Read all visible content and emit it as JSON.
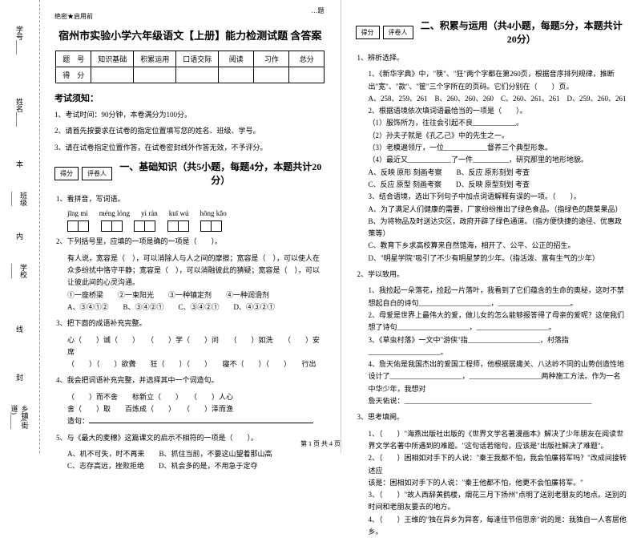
{
  "topLabel": "…题",
  "marginLabels": {
    "xuehao": "学号____",
    "xingming": "姓名____",
    "banji": "班级____",
    "xuexiao": "学校____",
    "xiangzhen": "乡镇(街道)____",
    "nei": "内",
    "ben": "本",
    "xian": "线",
    "feng": "封"
  },
  "header": {
    "secret": "绝密★启用前",
    "title": "宿州市实验小学六年级语文【上册】能力检测试题 含答案"
  },
  "scoreTable": {
    "r1": [
      "题　号",
      "知识基础",
      "积累运用",
      "口语交际",
      "阅读",
      "习作",
      "总分"
    ],
    "r2": [
      "得　分",
      "",
      "",
      "",
      "",
      "",
      ""
    ]
  },
  "notice": {
    "title": "考试须知：",
    "items": [
      "1、考试时间：90分钟，本卷满分为100分。",
      "2、请首先按要求在试卷的指定位置填写您的姓名、班级、学号。",
      "3、请在试卷指定位置作答，在试卷密封线外作答无效，不予评分。"
    ]
  },
  "scoreLabel": {
    "defen": "得分",
    "pingjuan": "评卷人"
  },
  "section1": {
    "title": "一、基础知识（共5小题，每题4分，本题共计20分）",
    "q1": "1、看拼音，写词语。",
    "pinyin": [
      "jīng  mì",
      "méng  lóng",
      "yì  rán",
      "kuī  wú",
      "hōng  kǎo"
    ],
    "q2": "2、下列括号里，应填的一项是确的一项是（　　）。",
    "q2body": "有人说，宽容是（　），可以消除人与人之间的摩擦；宽容是（　），可以使人在众多纷扰中恪守平静；宽容是（　），可以消融彼此的猜疑；宽容是（　），可以让彼此间的心灵沟通。",
    "q2opts": {
      "line1": "①一座桥梁　　②一束阳光　　③一种镇定剂　　④一种润滑剂",
      "line2": "A、③④①②　　B、③④②①　　C、③④②①　　D、④③②①"
    },
    "q3": "3、把下面的成语补充完整。",
    "q3a": "心（　　）诚（　　）　　（　　）学（　　）问　　（　　）如洗　　（　　）安席",
    "q3b": "（　　）（　　）欲聋　　狂（　　）（　　）　　寝不（　　）（　　）　　行出",
    "q4": "4、我会把词语补充完整，并选择其中一个词造句。",
    "q4a": "（　　）而不舍　　标新立（　　）　　（　　）人心",
    "q4b": "舍（　　）取　　百炼成（　　）　　（　　）泽而渔",
    "q4c": "造句：",
    "q5": "5、与《最大的麦穗》这篇课文的启示不相符的一项是（　　）。",
    "q5opts": {
      "a": "A、机不可失，时不再来　　B、抓住当前，不要这山望着那山高",
      "c": "C、志存高远，挫败拒绝　　D、机会多的是，不用急于定夺"
    }
  },
  "section2": {
    "title": "二、积累与运用（共4小题，每题5分，本题共计20分）",
    "q1": "1、辨析选择。",
    "q1_1": "1、《新华字典》中，\"筷\"、\"狂\"两个字都在第260页，根据音序排列规律，推断出\"宽\"、\"款\"、\"筐\"三个字所在的页码。它们分别在（　　）页。",
    "q1_1opts": "A、258、259、261　B、260、260、260　C、260、261、261　D、259、260、261",
    "q1_2": "2、根据语境依次填词语最恰当的一项是（　　）。",
    "q1_2a": "（1）服饰所为，往往会引起不良____________。",
    "q1_2b": "（2）孙夫子就是《孔乙己》中的先生之一。",
    "q1_2c": "（3）老模遍领厅，一位____________督养三个典型形象。",
    "q1_2d": "（4）最近又____________了一件__________，研究那里的地形地貌。",
    "q1_2opts": {
      "a": "A、反映  原形  刻画考察　　B、反应  原形刻划  考查",
      "c": "C、反应  原型  刻画考察　　D、反映  原型刻划  考查"
    },
    "q1_3": "3、结合语境，选出下列句子中加点词语解释有误的一项。（　　）。",
    "q1_3a": "A、为了满足人们健康的需要，厂家纷纷推出了绿色食品。（指绿色的蔬菜果品）",
    "q1_3b": "B、为将物品及时送达灾区，政府开辟了绿色通道。（指方便快捷的途径、优惠政策等）",
    "q1_3c": "C、教育下乡求高校算来自然馆海，相开了、公平、公正的招生。",
    "q1_3d": "D、\"明星学院\"吸引了不少有明星梦的少年。（指活泼、富有生气的少年）",
    "q2": "2、学以致用。",
    "q2_1": "1、我捡起一朵落花，捡起一片落叶，我看到了它们蕴含的生命的奥秘，这时不禁想起自白的诗句____________________，____________________。",
    "q2_2": "2、母爱是世界上最伟大的爱，做儿女的怎么能够报答得了母亲的爱呢？这使我们想了诗句____________________，____________________。",
    "q2_3": "3、《草虫村落》一文中\"游侠\"指____________________，村落指____________________。",
    "q2_4": "4、詹天佑是我国杰出的爱国工程师，他根据居庸关、八达岭不同的山势创造性地设计了____________________，____________________两种施工方法。作为一名中华少年，我想对",
    "q2_5": "詹天佑说：____________________________________________________",
    "q3": "3、思考填阕。",
    "q3_1": "1、（　　）\"海燕出版社出版的《世界文学名著漫画本》解决了少年朋友在阅读世界文学名著中所遇到的难题。\"这句话若缩句，应该是\"出版社解决了难题\"。",
    "q3_2": "2、（　　）困相如对手下的人说：\"秦王我都不怕，我会怕廉将军吗？\"改成间接转述应",
    "q3_2b": "该是：困相如对手下的人说：\"秦王他都不怕，他更不会怕廉将军。\"",
    "q3_3": "3、（　　）\"故人西辞黄鹤楼，烟花三月下扬州\"点明了送别老朋友的地点。送别的时间和老朋友要去的地方。",
    "q3_4": "4、（　　）王维的\"独在异乡为异客，每逢佳节倍思亲\"说的是：我独自一人客居他乡。"
  },
  "footer": "第 1 页  共 4 页"
}
